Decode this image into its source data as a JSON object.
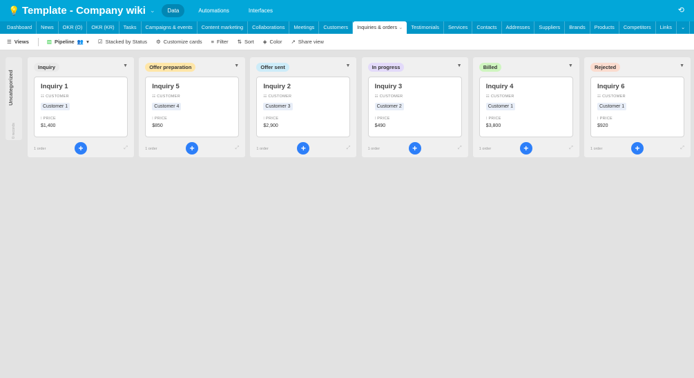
{
  "app": {
    "title": "Template - Company wiki",
    "nav": [
      "Data",
      "Automations",
      "Interfaces"
    ],
    "active_nav": "Data"
  },
  "tabs": [
    "Dashboard",
    "News",
    "OKR (O)",
    "OKR (KR)",
    "Tasks",
    "Campaigns & events",
    "Content marketing",
    "Collaborations",
    "Meetings",
    "Customers",
    "Inquiries & orders",
    "Testimonials",
    "Services",
    "Contacts",
    "Addresses",
    "Suppliers",
    "Brands",
    "Products",
    "Competitors",
    "Links"
  ],
  "active_tab": "Inquiries & orders",
  "toolbar": {
    "views": "Views",
    "view_name": "Pipeline",
    "stacked": "Stacked by Status",
    "customize": "Customize cards",
    "filter": "Filter",
    "sort": "Sort",
    "color": "Color",
    "share": "Share view"
  },
  "uncategorized": {
    "label": "Uncategorized",
    "count": "0 records"
  },
  "field_labels": {
    "customer": "CUSTOMER",
    "price": "PRICE"
  },
  "columns": [
    {
      "status": "Inquiry",
      "color": "#e9e9e9",
      "card": {
        "title": "Inquiry 1",
        "customer": "Customer 1",
        "price": "$1,400"
      },
      "count": "1 order"
    },
    {
      "status": "Offer preparation",
      "color": "#ffe6a8",
      "card": {
        "title": "Inquiry 5",
        "customer": "Customer 4",
        "price": "$850"
      },
      "count": "1 order"
    },
    {
      "status": "Offer sent",
      "color": "#cdecf9",
      "card": {
        "title": "Inquiry 2",
        "customer": "Customer 3",
        "price": "$2,900"
      },
      "count": "1 order"
    },
    {
      "status": "In progress",
      "color": "#e3dafa",
      "card": {
        "title": "Inquiry 3",
        "customer": "Customer 2",
        "price": "$490"
      },
      "count": "1 order"
    },
    {
      "status": "Billed",
      "color": "#cff5c0",
      "card": {
        "title": "Inquiry 4",
        "customer": "Customer 1",
        "price": "$3,800"
      },
      "count": "1 order"
    },
    {
      "status": "Rejected",
      "color": "#fbdccf",
      "card": {
        "title": "Inquiry 6",
        "customer": "Customer 1",
        "price": "$920"
      },
      "count": "1 order"
    }
  ]
}
